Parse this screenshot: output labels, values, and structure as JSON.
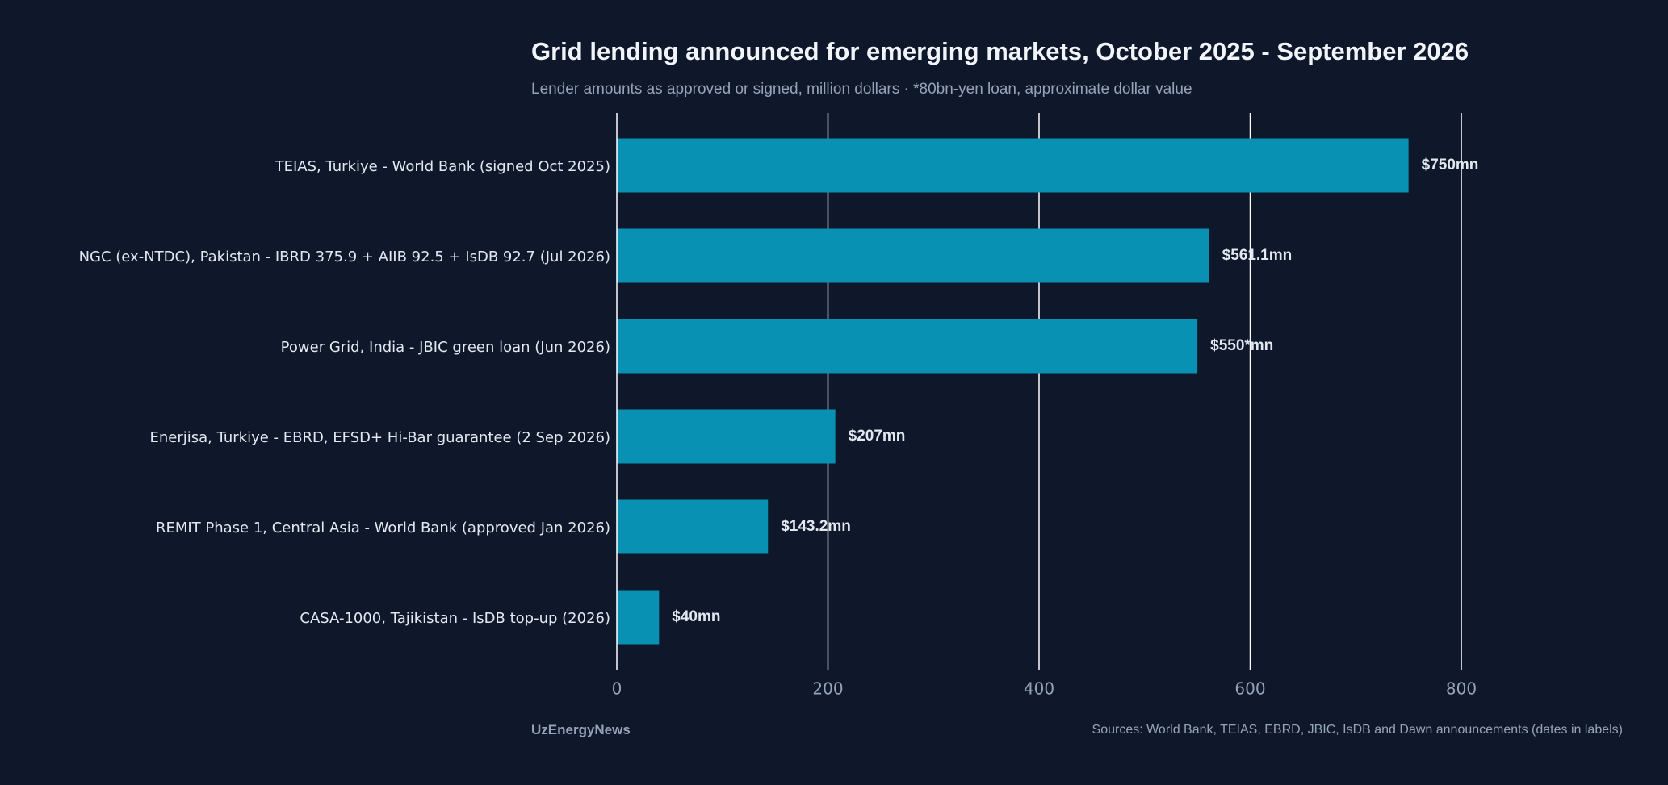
{
  "header": {
    "title": "Grid lending announced for emerging markets, October 2025 - September 2026",
    "subtitle": "Lender amounts as approved or signed, million dollars · *80bn-yen loan, approximate dollar value"
  },
  "footer": {
    "brand": "UzEnergyNews",
    "sources": "Sources: World Bank, TEIAS, EBRD, JBIC, IsDB and Dawn announcements (dates in labels)"
  },
  "colors": {
    "background": "#0f172a",
    "bar": "#0891b2",
    "grid": "#ffffff",
    "label": "#e2e8f0",
    "tick": "#94a3b8"
  },
  "chart_data": {
    "type": "bar",
    "orientation": "horizontal",
    "categories": [
      "TEIAS, Turkiye - World Bank (signed Oct 2025)",
      "NGC (ex-NTDC), Pakistan - IBRD 375.9 + AIIB 92.5 + IsDB 92.7 (Jul 2026)",
      "Power Grid, India - JBIC green loan (Jun 2026)",
      "Enerjisa, Turkiye - EBRD, EFSD+ Hi-Bar guarantee (2 Sep 2026)",
      "REMIT Phase 1, Central Asia - World Bank (approved Jan 2026)",
      "CASA-1000, Tajikistan - IsDB top-up (2026)"
    ],
    "values": [
      750,
      561.1,
      550,
      207,
      143.2,
      40
    ],
    "data_labels": [
      "$750mn",
      "$561.1mn",
      "$550*mn",
      "$207mn",
      "$143.2mn",
      "$40mn"
    ],
    "xticks": [
      0,
      200,
      400,
      600,
      800
    ],
    "xlim": [
      0,
      800
    ],
    "grid": true,
    "xlabel": "",
    "ylabel": ""
  }
}
